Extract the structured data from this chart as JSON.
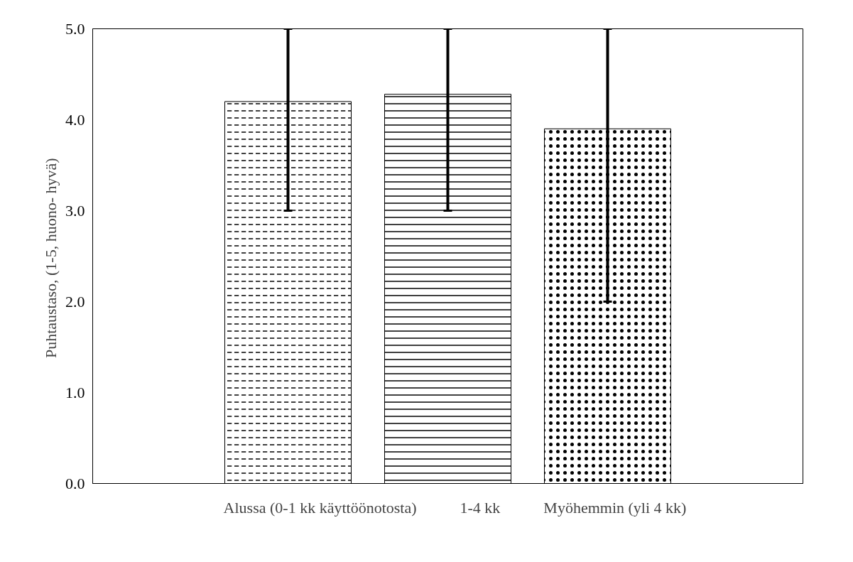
{
  "chart_data": {
    "type": "bar",
    "ylabel": "Puhtaustaso, (1-5,  huono- hyvä)",
    "categories": [
      null
    ],
    "series": [
      {
        "name": "Alussa (0-1 kk käyttöönotosta)",
        "color": "#ffffff",
        "values": [
          4.2
        ],
        "errors": [
          [
            3.0,
            5.0
          ]
        ]
      },
      {
        "name": "1-4 kk",
        "color": "#ffffff",
        "values": [
          4.28
        ],
        "errors": [
          [
            3.0,
            5.0
          ]
        ]
      },
      {
        "name": "Myöhemmin (yli 4 kk)",
        "color": "#ffffff",
        "values": [
          3.9
        ],
        "errors": [
          [
            2.0,
            5.0
          ]
        ]
      }
    ],
    "ylim": [
      0,
      5
    ],
    "yticks": [
      {
        "value": 0,
        "label": "0.0"
      },
      {
        "value": 1,
        "label": "1.0"
      },
      {
        "value": 2,
        "label": "2.0"
      },
      {
        "value": 3,
        "label": "3.0"
      },
      {
        "value": 4,
        "label": "4.0"
      },
      {
        "value": 5,
        "label": "5.0"
      }
    ],
    "grid": false,
    "legend": "bottom"
  }
}
